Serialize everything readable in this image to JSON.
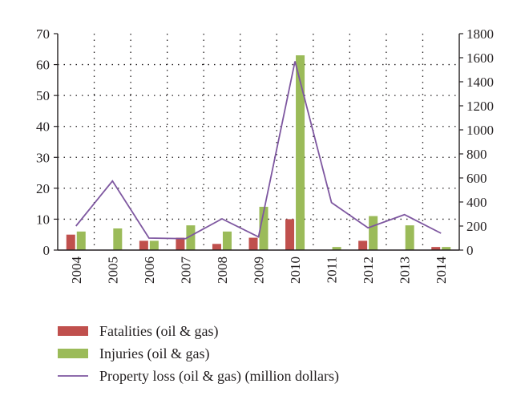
{
  "chart_data": {
    "type": "bar",
    "categories": [
      "2004",
      "2005",
      "2006",
      "2007",
      "2008",
      "2009",
      "2010",
      "2011",
      "2012",
      "2013",
      "2014"
    ],
    "series": [
      {
        "name": "Fatalities (oil & gas)",
        "kind": "bar",
        "axis": "left",
        "color": "#c0504d",
        "values": [
          5,
          0,
          3,
          4,
          2,
          4,
          10,
          0,
          3,
          0,
          1
        ]
      },
      {
        "name": "Injuries (oil & gas)",
        "kind": "bar",
        "axis": "left",
        "color": "#9bbb59",
        "values": [
          6,
          7,
          3,
          8,
          6,
          14,
          63,
          1,
          11,
          8,
          1
        ]
      },
      {
        "name": "Property loss (oil & gas) (million dollars)",
        "kind": "line",
        "axis": "right",
        "color": "#7e57a0",
        "values": [
          200,
          575,
          100,
          95,
          260,
          110,
          1570,
          395,
          185,
          295,
          140
        ]
      }
    ],
    "y_left": {
      "min": 0,
      "max": 70,
      "ticks": [
        "0",
        "10",
        "20",
        "30",
        "40",
        "50",
        "60",
        "70"
      ]
    },
    "y_right": {
      "min": 0,
      "max": 1800,
      "ticks": [
        "0",
        "200",
        "400",
        "600",
        "800",
        "1000",
        "1200",
        "1400",
        "1600",
        "1800"
      ]
    },
    "grid": true,
    "legend_position": "bottom-left",
    "title": "",
    "xlabel": "",
    "ylabel": ""
  }
}
